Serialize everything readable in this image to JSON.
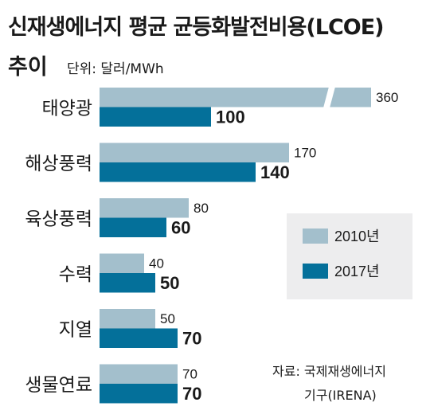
{
  "header": {
    "title_line1": "신재생에너지 평균 균등화발전비용(LCOE)",
    "title_line2": "추이",
    "unit": "단위: 달러/MWh"
  },
  "legend": [
    {
      "label": "2010년",
      "color": "#a3bfcc"
    },
    {
      "label": "2017년",
      "color": "#04709a"
    }
  ],
  "source": {
    "line1": "자료: 국제재생에너지",
    "line2": "기구(IRENA)"
  },
  "chart_data": {
    "type": "bar",
    "orientation": "horizontal",
    "categories": [
      "태양광",
      "해상풍력",
      "육상풍력",
      "수력",
      "지열",
      "생물연료"
    ],
    "series": [
      {
        "name": "2010년",
        "values": [
          360,
          170,
          80,
          40,
          50,
          70
        ],
        "color": "#a3bfcc"
      },
      {
        "name": "2017년",
        "values": [
          100,
          140,
          60,
          50,
          70,
          70
        ],
        "color": "#04709a"
      }
    ],
    "axis_break": {
      "category": "태양광",
      "series": "2010년"
    },
    "grid": false,
    "legend_position": "right"
  }
}
